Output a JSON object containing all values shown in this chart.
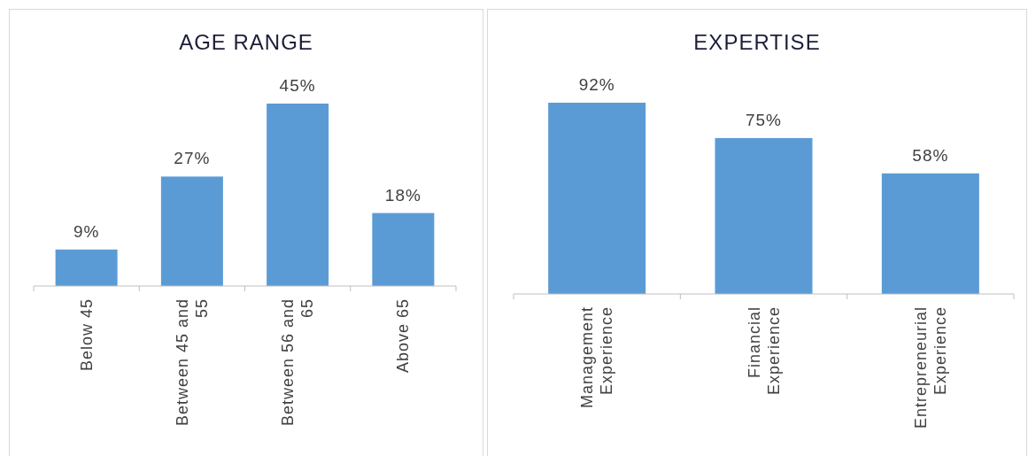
{
  "chart_data": [
    {
      "type": "bar",
      "title": "AGE RANGE",
      "categories": [
        "Below 45",
        "Between 45 and 55",
        "Between 56 and 65",
        "Above 65"
      ],
      "values": [
        9,
        27,
        45,
        18
      ],
      "value_labels": [
        "9%",
        "27%",
        "45%",
        "18%"
      ],
      "color": "#5b9bd5"
    },
    {
      "type": "bar",
      "title": "EXPERTISE",
      "categories": [
        "Management Experience",
        "Financial Experience",
        "Entrepreneurial Experience"
      ],
      "values": [
        92,
        75,
        58
      ],
      "value_labels": [
        "92%",
        "75%",
        "58%"
      ],
      "color": "#5b9bd5"
    }
  ]
}
